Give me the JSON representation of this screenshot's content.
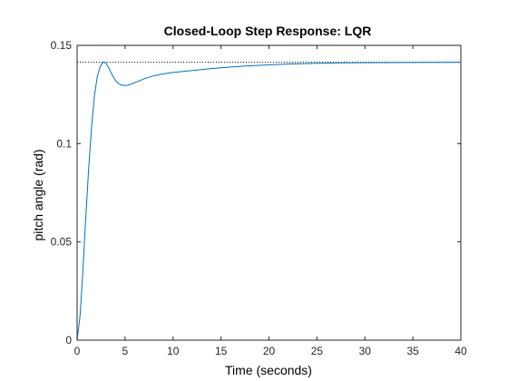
{
  "chart_data": {
    "type": "line",
    "title": "Closed-Loop Step Response: LQR",
    "xlabel": "Time (seconds)",
    "ylabel": "pitch angle (rad)",
    "xlim": [
      0,
      40
    ],
    "ylim": [
      0,
      0.15
    ],
    "xticks": [
      0,
      5,
      10,
      15,
      20,
      25,
      30,
      35,
      40
    ],
    "yticks": [
      0,
      0.05,
      0.1,
      0.15
    ],
    "xtick_labels": [
      "0",
      "5",
      "10",
      "15",
      "20",
      "25",
      "30",
      "35",
      "40"
    ],
    "ytick_labels": [
      "0",
      "0.05",
      "0.1",
      "0.15"
    ],
    "grid": false,
    "series": [
      {
        "color": "#0072bd",
        "x": [
          0,
          0.3,
          0.6,
          0.9,
          1.2,
          1.5,
          1.8,
          2.1,
          2.4,
          2.7,
          3.0,
          3.3,
          3.6,
          4.0,
          4.5,
          5.0,
          5.5,
          6.0,
          7.0,
          8.0,
          9.0,
          10,
          12,
          14,
          16,
          18,
          20,
          22,
          25,
          28,
          30,
          35,
          40
        ],
        "y": [
          0,
          0.012,
          0.035,
          0.062,
          0.087,
          0.108,
          0.124,
          0.134,
          0.139,
          0.1415,
          0.141,
          0.1385,
          0.1355,
          0.132,
          0.13,
          0.1295,
          0.13,
          0.131,
          0.133,
          0.1345,
          0.1355,
          0.1362,
          0.1372,
          0.1382,
          0.139,
          0.1396,
          0.1401,
          0.1405,
          0.1409,
          0.1411,
          0.1412,
          0.1413,
          0.1414
        ]
      }
    ],
    "reference_line": {
      "y": 0.1414,
      "x": [
        0,
        40
      ],
      "style": "dotted",
      "color": "#000000"
    }
  }
}
